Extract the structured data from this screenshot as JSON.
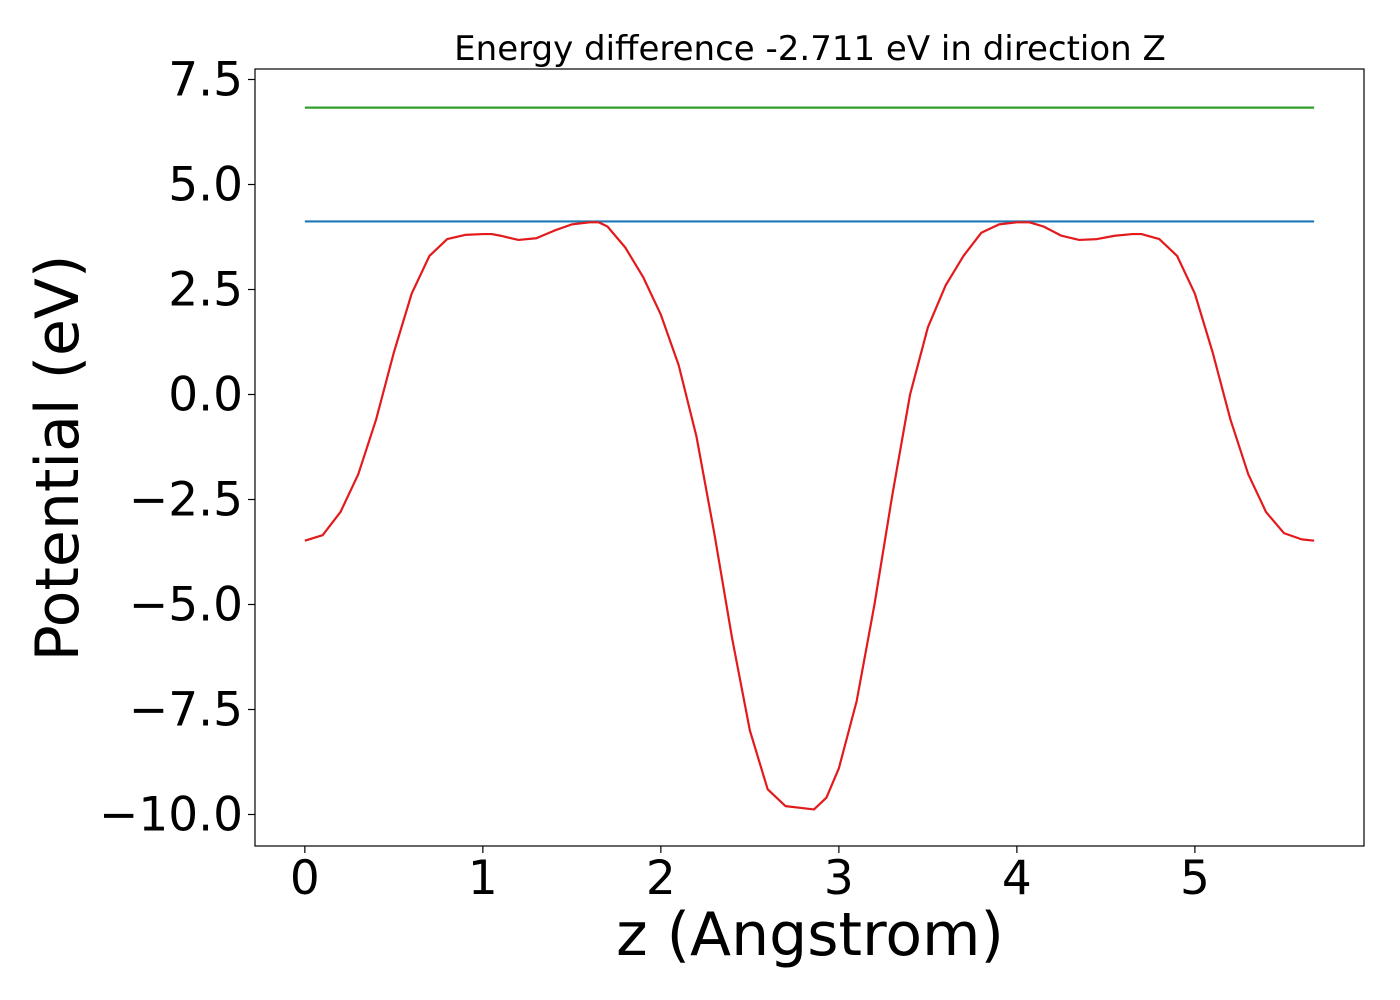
{
  "chart_data": {
    "type": "line",
    "title": "Energy difference -2.711 eV in direction Z",
    "xlabel": "z (Angstrom)",
    "ylabel": "Potential (eV)",
    "xlim": [
      -0.28,
      5.95
    ],
    "ylim": [
      -10.75,
      7.75
    ],
    "xticks": [
      0,
      1,
      2,
      3,
      4,
      5
    ],
    "xtick_labels": [
      "0",
      "1",
      "2",
      "3",
      "4",
      "5"
    ],
    "yticks": [
      7.5,
      5.0,
      2.5,
      0.0,
      -2.5,
      -5.0,
      -7.5,
      -10.0
    ],
    "ytick_labels": [
      "7.5",
      "5.0",
      "2.5",
      "0.0",
      "−2.5",
      "−5.0",
      "−7.5",
      "−10.0"
    ],
    "grid": false,
    "series": [
      {
        "color": "#e31a1c",
        "x": [
          0.0,
          0.1,
          0.2,
          0.3,
          0.4,
          0.5,
          0.6,
          0.7,
          0.8,
          0.9,
          1.0,
          1.05,
          1.1,
          1.2,
          1.3,
          1.4,
          1.5,
          1.6,
          1.65,
          1.7,
          1.8,
          1.9,
          2.0,
          2.1,
          2.2,
          2.3,
          2.4,
          2.5,
          2.6,
          2.7,
          2.8,
          2.86,
          2.93,
          3.0,
          3.1,
          3.2,
          3.3,
          3.4,
          3.5,
          3.6,
          3.7,
          3.8,
          3.9,
          4.0,
          4.07,
          4.15,
          4.25,
          4.35,
          4.45,
          4.55,
          4.65,
          4.7,
          4.8,
          4.9,
          5.0,
          5.1,
          5.2,
          5.3,
          5.4,
          5.5,
          5.6,
          5.67
        ],
        "y": [
          -3.48,
          -3.35,
          -2.8,
          -1.9,
          -0.6,
          1.0,
          2.4,
          3.3,
          3.7,
          3.8,
          3.82,
          3.82,
          3.78,
          3.68,
          3.72,
          3.9,
          4.05,
          4.1,
          4.1,
          4.0,
          3.5,
          2.8,
          1.9,
          0.7,
          -1.0,
          -3.3,
          -5.8,
          -8.0,
          -9.4,
          -9.8,
          -9.85,
          -9.88,
          -9.6,
          -8.9,
          -7.3,
          -5.0,
          -2.4,
          0.0,
          1.6,
          2.6,
          3.3,
          3.85,
          4.05,
          4.1,
          4.1,
          4.0,
          3.78,
          3.68,
          3.7,
          3.78,
          3.82,
          3.82,
          3.7,
          3.3,
          2.4,
          1.0,
          -0.6,
          -1.9,
          -2.8,
          -3.3,
          -3.45,
          -3.48
        ]
      },
      {
        "color": "#1f78b4",
        "x": [
          0.0,
          5.67
        ],
        "y": [
          4.12,
          4.12
        ]
      },
      {
        "color": "#33a02c",
        "x": [
          0.0,
          5.67
        ],
        "y": [
          6.83,
          6.83
        ]
      }
    ]
  }
}
